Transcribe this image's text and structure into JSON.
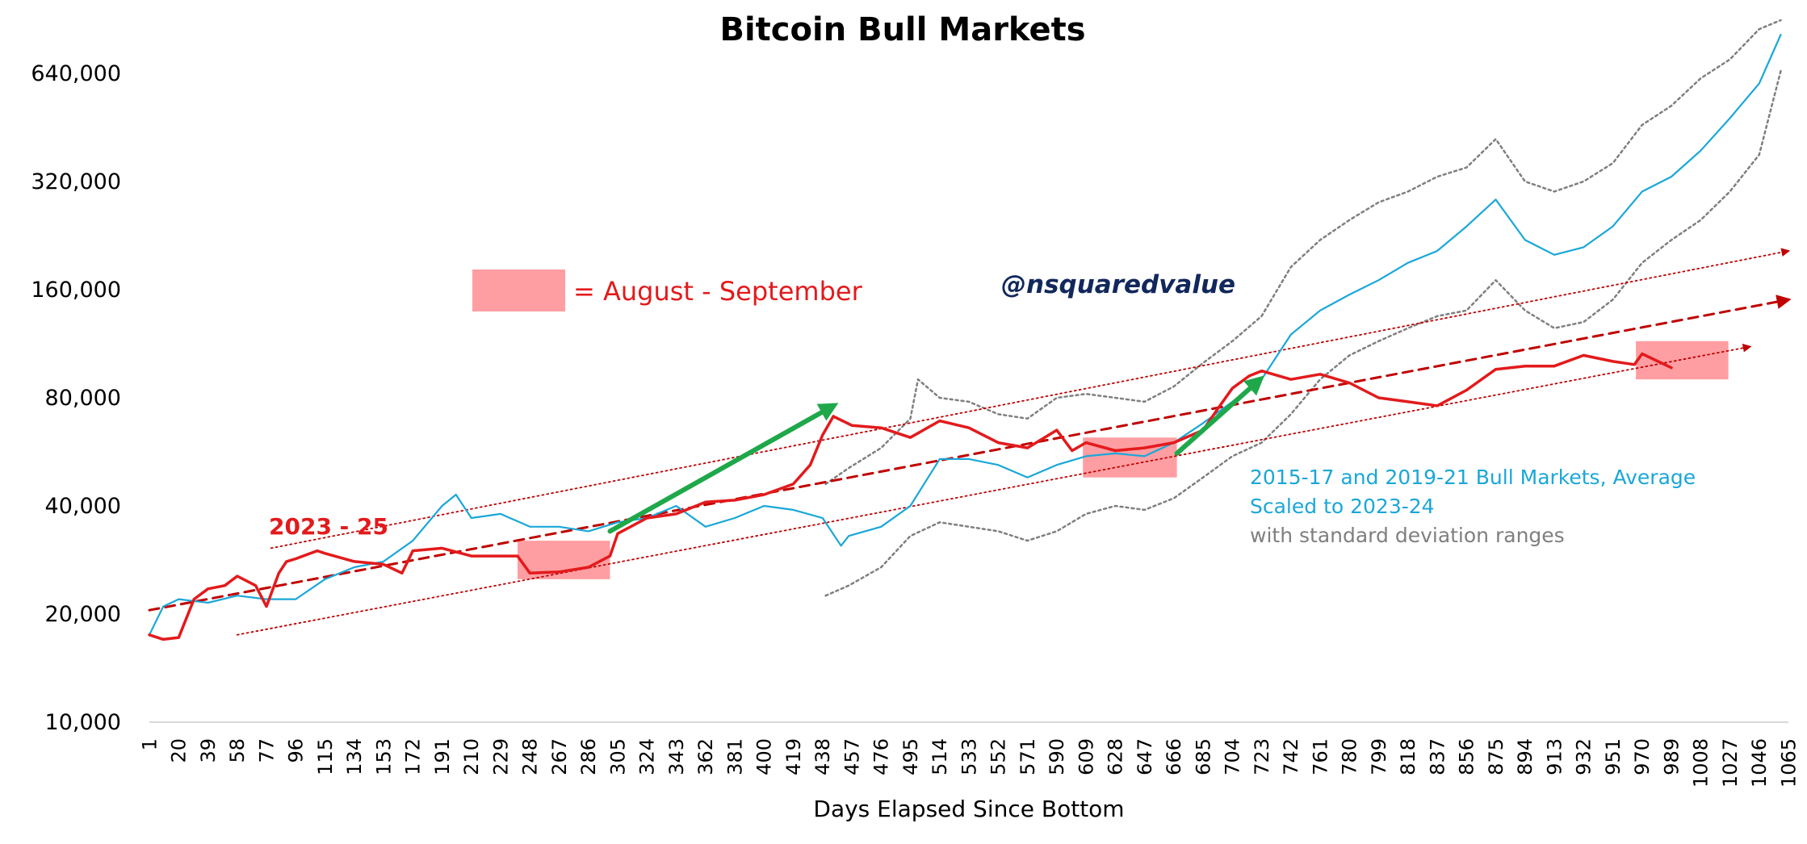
{
  "chart_data": {
    "type": "line",
    "title": "Bitcoin Bull Markets",
    "xlabel": "Days Elapsed Since Bottom",
    "ylabel": "",
    "y_scale": "log2",
    "ylim": [
      10000,
      900000
    ],
    "xlim": [
      1,
      1065
    ],
    "y_ticks": [
      10000,
      20000,
      40000,
      80000,
      160000,
      320000,
      640000
    ],
    "y_tick_labels": [
      "10,000",
      "20,000",
      "40,000",
      "80,000",
      "160,000",
      "320,000",
      "640,000"
    ],
    "x_ticks": [
      1,
      20,
      39,
      58,
      77,
      96,
      115,
      134,
      153,
      172,
      191,
      210,
      229,
      248,
      267,
      286,
      305,
      324,
      343,
      362,
      381,
      400,
      419,
      438,
      457,
      476,
      495,
      514,
      533,
      552,
      571,
      590,
      609,
      628,
      647,
      666,
      685,
      704,
      723,
      742,
      761,
      780,
      799,
      818,
      837,
      856,
      875,
      894,
      913,
      932,
      951,
      970,
      989,
      1008,
      1027,
      1046,
      1065
    ],
    "legend": {
      "swatch_label": "= August - September",
      "swatch_color": "#ff9ea2"
    },
    "annotations": {
      "handle": "@nsquaredvalue",
      "period_label": "2023 - 25",
      "blue_note_line1": "2015-17 and 2019-21 Bull Markets, Average",
      "blue_note_line2": "Scaled to 2023-24",
      "gray_note": "with standard deviation ranges"
    },
    "highlight_ranges": [
      {
        "x_start": 240,
        "x_end": 300,
        "y_low": 25000,
        "y_high": 32000
      },
      {
        "x_start": 607,
        "x_end": 668,
        "y_low": 48000,
        "y_high": 62000
      },
      {
        "x_start": 966,
        "x_end": 1026,
        "y_low": 90000,
        "y_high": 115000
      }
    ],
    "series": [
      {
        "name": "2023 - 25",
        "color": "#e31a1c",
        "x": [
          1,
          10,
          20,
          30,
          39,
          50,
          58,
          70,
          77,
          85,
          90,
          96,
          110,
          115,
          134,
          153,
          165,
          172,
          191,
          210,
          229,
          240,
          248,
          267,
          286,
          300,
          305,
          324,
          343,
          362,
          381,
          400,
          419,
          430,
          438,
          445,
          457,
          476,
          495,
          514,
          533,
          552,
          571,
          590,
          600,
          609,
          628,
          647,
          666,
          685,
          695,
          704,
          715,
          723,
          742,
          761,
          780,
          799,
          818,
          837,
          856,
          875,
          894,
          913,
          932,
          951,
          965,
          970,
          989
        ],
        "y": [
          17500,
          17000,
          17200,
          22000,
          23500,
          24000,
          25500,
          24000,
          21000,
          26000,
          28000,
          28500,
          30000,
          29500,
          28000,
          27500,
          26000,
          30000,
          30500,
          29000,
          29000,
          29000,
          26000,
          26200,
          27000,
          29000,
          33500,
          37000,
          38000,
          41000,
          41500,
          43000,
          46000,
          52000,
          63000,
          71000,
          67000,
          66000,
          62000,
          69000,
          66000,
          60000,
          58000,
          65000,
          57000,
          60000,
          57000,
          58000,
          60000,
          65000,
          75000,
          85000,
          92000,
          95000,
          90000,
          93000,
          88000,
          80000,
          78000,
          76000,
          84000,
          96000,
          98000,
          98000,
          105000,
          101000,
          99000,
          106000,
          97000
        ]
      },
      {
        "name": "2015-17 and 2019-21 Bull Markets, Average",
        "color": "#1aa7d8",
        "x": [
          1,
          10,
          20,
          39,
          58,
          77,
          96,
          115,
          134,
          153,
          172,
          191,
          200,
          210,
          229,
          248,
          267,
          286,
          305,
          324,
          343,
          362,
          381,
          400,
          419,
          438,
          450,
          455,
          476,
          495,
          514,
          533,
          552,
          571,
          590,
          609,
          628,
          647,
          666,
          685,
          704,
          723,
          742,
          761,
          780,
          799,
          818,
          837,
          856,
          875,
          894,
          913,
          932,
          951,
          970,
          989,
          1008,
          1027,
          1046,
          1060
        ],
        "y": [
          17500,
          21000,
          22000,
          21500,
          22500,
          22000,
          22000,
          25000,
          27000,
          28000,
          32000,
          40000,
          43000,
          37000,
          38000,
          35000,
          35000,
          34000,
          36000,
          37000,
          40000,
          35000,
          37000,
          40000,
          39000,
          37000,
          31000,
          33000,
          35000,
          40000,
          54000,
          54000,
          52000,
          48000,
          52000,
          55000,
          56000,
          55000,
          60000,
          68000,
          78000,
          90000,
          120000,
          140000,
          155000,
          170000,
          190000,
          205000,
          240000,
          285000,
          220000,
          200000,
          210000,
          240000,
          300000,
          330000,
          390000,
          480000,
          600000,
          820000
        ]
      },
      {
        "name": "Upper standard deviation",
        "color": "#7f7f7f",
        "x": [
          440,
          455,
          476,
          495,
          500,
          514,
          533,
          552,
          571,
          590,
          609,
          628,
          647,
          666,
          685,
          704,
          723,
          742,
          761,
          780,
          799,
          818,
          837,
          856,
          875,
          894,
          913,
          932,
          951,
          970,
          989,
          1008,
          1027,
          1046,
          1060
        ],
        "y": [
          46000,
          51000,
          58000,
          70000,
          90000,
          80000,
          78000,
          72000,
          70000,
          80000,
          82000,
          80000,
          78000,
          86000,
          100000,
          115000,
          135000,
          185000,
          220000,
          250000,
          280000,
          300000,
          330000,
          350000,
          420000,
          320000,
          300000,
          320000,
          360000,
          460000,
          520000,
          620000,
          700000,
          850000,
          900000
        ]
      },
      {
        "name": "Lower standard deviation",
        "color": "#7f7f7f",
        "x": [
          440,
          455,
          476,
          495,
          514,
          533,
          552,
          571,
          590,
          609,
          628,
          647,
          666,
          685,
          704,
          723,
          742,
          761,
          780,
          799,
          818,
          837,
          856,
          875,
          894,
          913,
          932,
          951,
          970,
          989,
          1008,
          1027,
          1046,
          1060
        ],
        "y": [
          22500,
          24000,
          27000,
          33000,
          36000,
          35000,
          34000,
          32000,
          34000,
          38000,
          40000,
          39000,
          42000,
          48000,
          55000,
          60000,
          72000,
          90000,
          105000,
          115000,
          125000,
          135000,
          140000,
          170000,
          140000,
          125000,
          130000,
          150000,
          190000,
          220000,
          250000,
          300000,
          380000,
          650000
        ]
      },
      {
        "name": "Trend (dashed)",
        "color": "#c00000",
        "x": [
          1,
          1065
        ],
        "y": [
          20500,
          150000
        ]
      },
      {
        "name": "Upper channel (dotted)",
        "color": "#c00000",
        "x": [
          80,
          1065
        ],
        "y": [
          30500,
          205000
        ]
      },
      {
        "name": "Lower channel (dotted)",
        "color": "#c00000",
        "x": [
          58,
          1040
        ],
        "y": [
          17500,
          111000
        ]
      },
      {
        "name": "Green arrow 1",
        "color": "#1fa84a",
        "x": [
          300,
          445
        ],
        "y": [
          34000,
          76000
        ]
      },
      {
        "name": "Green arrow 2",
        "color": "#1fa84a",
        "x": [
          668,
          722
        ],
        "y": [
          56000,
          90000
        ]
      }
    ]
  }
}
